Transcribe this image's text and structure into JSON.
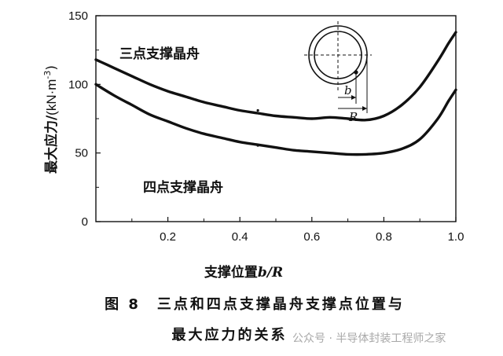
{
  "chart_data": {
    "type": "line",
    "xlabel_prefix": "支撑位置",
    "xlabel_var": "b/R",
    "ylabel_prefix": "最大应力/",
    "ylabel_units": "(kN·m",
    "ylabel_exp": "-3",
    "ylabel_close": ")",
    "xlim": [
      0,
      1.0
    ],
    "ylim": [
      0,
      150
    ],
    "xticks": [
      0.2,
      0.4,
      0.6,
      0.8,
      1.0
    ],
    "xtick_labels": [
      "0.2",
      "0.4",
      "0.6",
      "0.8",
      "1.0"
    ],
    "yticks": [
      0,
      50,
      100,
      150
    ],
    "ytick_labels": [
      "0",
      "50",
      "100",
      "150"
    ],
    "series": [
      {
        "name": "三点支撑晶舟",
        "x": [
          0.0,
          0.05,
          0.1,
          0.15,
          0.2,
          0.25,
          0.3,
          0.35,
          0.4,
          0.45,
          0.5,
          0.55,
          0.6,
          0.65,
          0.7,
          0.75,
          0.8,
          0.85,
          0.9,
          0.95,
          0.98,
          1.0
        ],
        "values": [
          118,
          112,
          106,
          100,
          95,
          91,
          87,
          84,
          81,
          79,
          77,
          76,
          75,
          76,
          75,
          74,
          77,
          85,
          98,
          117,
          130,
          138
        ]
      },
      {
        "name": "四点支撑晶舟",
        "x": [
          0.0,
          0.05,
          0.1,
          0.15,
          0.2,
          0.25,
          0.3,
          0.35,
          0.4,
          0.45,
          0.5,
          0.55,
          0.6,
          0.65,
          0.7,
          0.75,
          0.8,
          0.85,
          0.9,
          0.95,
          0.98,
          1.0
        ],
        "values": [
          100,
          92,
          85,
          78,
          73,
          68,
          64,
          61,
          58,
          56,
          54,
          52,
          51,
          50,
          49,
          49,
          50,
          53,
          60,
          75,
          88,
          96
        ]
      }
    ],
    "inset_labels": {
      "b": "b",
      "R": "R"
    }
  },
  "caption": {
    "line1": "图 8　三点和四点支撑晶舟支撑点位置与",
    "line2": "最大应力的关系"
  },
  "watermark": "公众号 · 半导体封装工程师之家"
}
